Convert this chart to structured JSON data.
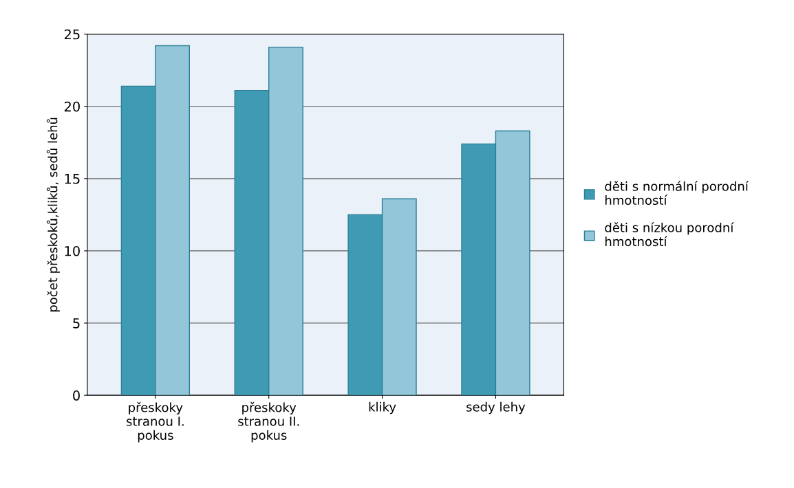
{
  "chart_data": {
    "type": "bar",
    "ylabel": "počet přeskoků,kliků, sedů lehů",
    "categories": [
      "přeskoky\nstranou I.\npokus",
      "přeskoky\nstranou II.\npokus",
      "kliky",
      "sedy lehy"
    ],
    "series": [
      {
        "name": "děti s normální porodní\nhmotností",
        "color": "#3f9bb4",
        "values": [
          21.4,
          21.1,
          12.5,
          17.4
        ]
      },
      {
        "name": "děti s nízkou porodní\nhmotností",
        "color": "#93c6d8",
        "values": [
          24.2,
          24.1,
          13.6,
          18.3
        ]
      }
    ],
    "ylim": [
      0,
      25
    ],
    "yticks": [
      0,
      5,
      10,
      15,
      20,
      25
    ],
    "grid": "y",
    "legend": "right"
  }
}
